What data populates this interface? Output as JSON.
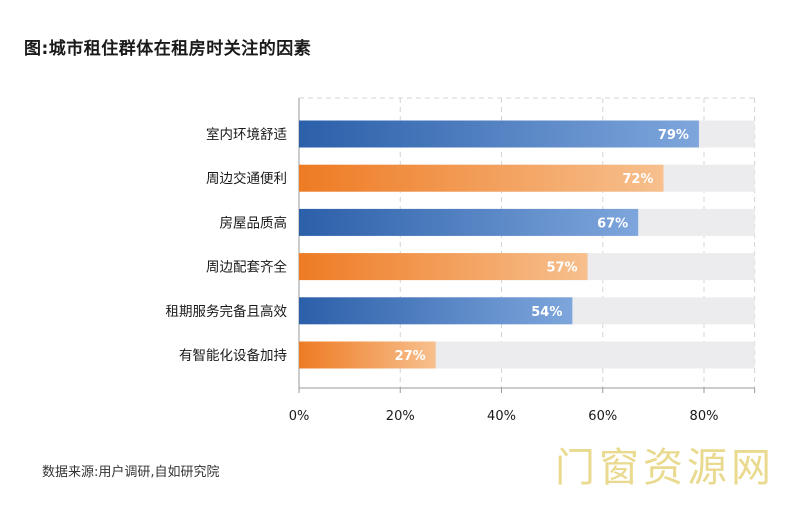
{
  "title": "图:城市租住群体在租房时关注的因素",
  "source": "数据来源:用户调研,自如研究院",
  "watermark": "门窗资源网",
  "colors": {
    "blue_start": "#2b5fa9",
    "blue_end": "#7ea6dc",
    "orange_start": "#ee7b24",
    "orange_end": "#f7c08e",
    "track": "#ececee",
    "grid": "#d4d4d4"
  },
  "chart_data": {
    "type": "bar",
    "orientation": "horizontal",
    "title": "图:城市租住群体在租房时关注的因素",
    "categories": [
      "室内环境舒适",
      "周边交通便利",
      "房屋品质高",
      "周边配套齐全",
      "租期服务完备且高效",
      "有智能化设备加持"
    ],
    "values": [
      79,
      72,
      67,
      57,
      54,
      27
    ],
    "value_labels": [
      "79%",
      "72%",
      "67%",
      "57%",
      "54%",
      "27%"
    ],
    "bar_colors": [
      "blue",
      "orange",
      "blue",
      "orange",
      "blue",
      "orange"
    ],
    "xlim": [
      0,
      90
    ],
    "xticks": [
      0,
      20,
      40,
      60,
      80
    ],
    "xtick_labels": [
      "0%",
      "20%",
      "40%",
      "60%",
      "80%"
    ],
    "grid": true,
    "xlabel": "",
    "ylabel": ""
  }
}
